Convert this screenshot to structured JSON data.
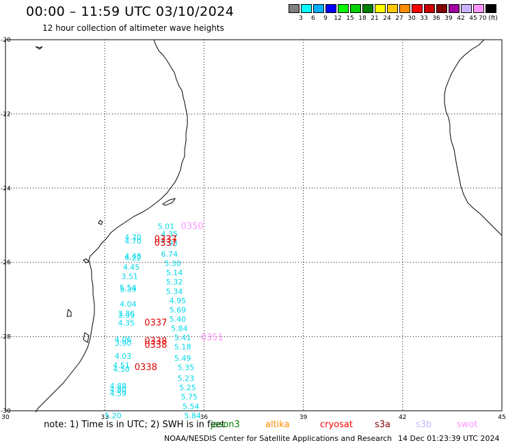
{
  "header": {
    "title": "00:00 – 11:59 UTC 03/10/2024",
    "subtitle": "12 hour collection of altimeter wave heights"
  },
  "color_scale": {
    "colors": [
      "#808080",
      "#00ffff",
      "#00b0ff",
      "#0000ff",
      "#00ff00",
      "#00d000",
      "#008000",
      "#ffff00",
      "#ffc800",
      "#ff8c00",
      "#ff0000",
      "#c80000",
      "#800000",
      "#a000a0",
      "#c8b4ff",
      "#ff96ff",
      "#000000"
    ],
    "ticks": [
      "3",
      "6",
      "9",
      "12",
      "15",
      "18",
      "21",
      "24",
      "27",
      "30",
      "33",
      "36",
      "39",
      "42",
      "45",
      "70 (ft)"
    ]
  },
  "axes": {
    "lon_labels": [
      "30",
      "33",
      "36",
      "39",
      "42",
      "45"
    ],
    "lat_labels": [
      "-20",
      "-22",
      "-24",
      "-26",
      "-28",
      "-30"
    ]
  },
  "cyan_values": [
    {
      "text": "5.01",
      "lon": 34.6,
      "lat": -25.1
    },
    {
      "text": "4.35",
      "lon": 34.7,
      "lat": -25.3
    },
    {
      "text": "4.70",
      "lon": 33.6,
      "lat": -25.4
    },
    {
      "text": "4.70",
      "lon": 33.6,
      "lat": -25.5
    },
    {
      "text": "5.93",
      "lon": 34.7,
      "lat": -25.55
    },
    {
      "text": "6.74",
      "lon": 34.7,
      "lat": -25.85
    },
    {
      "text": "4.48",
      "lon": 33.6,
      "lat": -25.9
    },
    {
      "text": "4.22",
      "lon": 33.6,
      "lat": -25.95
    },
    {
      "text": "5.30",
      "lon": 34.8,
      "lat": -26.1
    },
    {
      "text": "4.45",
      "lon": 33.55,
      "lat": -26.2
    },
    {
      "text": "5.14",
      "lon": 34.85,
      "lat": -26.35
    },
    {
      "text": "3.51",
      "lon": 33.5,
      "lat": -26.45
    },
    {
      "text": "5.32",
      "lon": 34.85,
      "lat": -26.6
    },
    {
      "text": "5.54",
      "lon": 33.45,
      "lat": -26.75
    },
    {
      "text": "5.39",
      "lon": 33.45,
      "lat": -26.8
    },
    {
      "text": "5.34",
      "lon": 34.85,
      "lat": -26.85
    },
    {
      "text": "4.95",
      "lon": 34.95,
      "lat": -27.1
    },
    {
      "text": "4.04",
      "lon": 33.45,
      "lat": -27.2
    },
    {
      "text": "5.69",
      "lon": 34.95,
      "lat": -27.35
    },
    {
      "text": "3.36",
      "lon": 33.4,
      "lat": -27.45
    },
    {
      "text": "3.99",
      "lon": 33.4,
      "lat": -27.5
    },
    {
      "text": "5.40",
      "lon": 34.95,
      "lat": -27.6
    },
    {
      "text": "4.35",
      "lon": 33.4,
      "lat": -27.7
    },
    {
      "text": "5.84",
      "lon": 35.0,
      "lat": -27.85
    },
    {
      "text": "5.41",
      "lon": 35.1,
      "lat": -28.1
    },
    {
      "text": "4.06",
      "lon": 33.3,
      "lat": -28.15
    },
    {
      "text": "3.90",
      "lon": 33.3,
      "lat": -28.25
    },
    {
      "text": "5.18",
      "lon": 35.1,
      "lat": -28.35
    },
    {
      "text": "4.03",
      "lon": 33.3,
      "lat": -28.6
    },
    {
      "text": "5.49",
      "lon": 35.1,
      "lat": -28.65
    },
    {
      "text": "4.51",
      "lon": 33.25,
      "lat": -28.85
    },
    {
      "text": "5.35",
      "lon": 35.2,
      "lat": -28.9
    },
    {
      "text": "4.50",
      "lon": 33.25,
      "lat": -28.95
    },
    {
      "text": "5.23",
      "lon": 35.2,
      "lat": -29.2
    },
    {
      "text": "4.88",
      "lon": 33.15,
      "lat": -29.4
    },
    {
      "text": "5.25",
      "lon": 35.25,
      "lat": -29.45
    },
    {
      "text": "4.80",
      "lon": 33.15,
      "lat": -29.5
    },
    {
      "text": "4.59",
      "lon": 33.15,
      "lat": -29.6
    },
    {
      "text": "5.75",
      "lon": 35.3,
      "lat": -29.7
    },
    {
      "text": "5.54",
      "lon": 35.35,
      "lat": -29.95
    },
    {
      "text": "5.20",
      "lon": 33.0,
      "lat": -30.2
    },
    {
      "text": "5.84",
      "lon": 35.4,
      "lat": -30.2
    }
  ],
  "pass_labels": [
    {
      "text": "0337",
      "lon": 34.5,
      "lat": -25.45,
      "color": "#e00000"
    },
    {
      "text": "0337",
      "lon": 34.5,
      "lat": -25.55,
      "color": "#e00000"
    },
    {
      "text": "0337",
      "lon": 34.2,
      "lat": -27.7,
      "color": "#e00000"
    },
    {
      "text": "0338",
      "lon": 34.2,
      "lat": -28.2,
      "color": "#e00000"
    },
    {
      "text": "0338",
      "lon": 34.2,
      "lat": -28.3,
      "color": "#e00000"
    },
    {
      "text": "0338",
      "lon": 33.9,
      "lat": -28.9,
      "color": "#e00000"
    },
    {
      "text": "0350",
      "lon": 35.3,
      "lat": -25.1,
      "color": "#ff96ff"
    },
    {
      "text": "0351",
      "lon": 35.9,
      "lat": -28.1,
      "color": "#ff96ff"
    }
  ],
  "footer": {
    "note": "note:  1) Time is in UTC;  2) SWH is in feet",
    "credit": "NOAA/NESDIS Center for Satellite Applications and Research",
    "timestamp": "14 Dec 01:23:39 UTC 2024"
  },
  "satellites": [
    {
      "name": "jason3",
      "color": "#008000"
    },
    {
      "name": "altika",
      "color": "#ff8c00"
    },
    {
      "name": "cryosat",
      "color": "#ff0000"
    },
    {
      "name": "s3a",
      "color": "#800000"
    },
    {
      "name": "s3b",
      "color": "#c8b4ff"
    },
    {
      "name": "swot",
      "color": "#ff96ff"
    }
  ]
}
